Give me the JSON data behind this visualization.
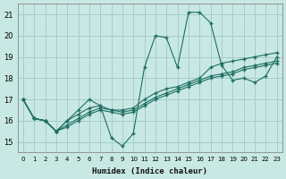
{
  "xlabel": "Humidex (Indice chaleur)",
  "xlim": [
    -0.5,
    23.5
  ],
  "ylim": [
    14.5,
    21.5
  ],
  "xticks": [
    0,
    1,
    2,
    3,
    4,
    5,
    6,
    7,
    8,
    9,
    10,
    11,
    12,
    13,
    14,
    15,
    16,
    17,
    18,
    19,
    20,
    21,
    22,
    23
  ],
  "yticks": [
    15,
    16,
    17,
    18,
    19,
    20,
    21
  ],
  "bg_color": "#c8e8e4",
  "grid_color": "#a8cccc",
  "line_color": "#1e6e62",
  "lines": [
    {
      "x": [
        0,
        1,
        2,
        3,
        4,
        5,
        6,
        7,
        8,
        9,
        10,
        11,
        12,
        13,
        14,
        15,
        16,
        17,
        18,
        19,
        20,
        21,
        22,
        23
      ],
      "y": [
        17.0,
        16.1,
        16.0,
        15.5,
        16.0,
        16.5,
        17.0,
        16.7,
        15.2,
        14.8,
        15.4,
        18.5,
        20.0,
        19.9,
        18.5,
        21.1,
        21.1,
        20.6,
        18.6,
        17.9,
        18.0,
        17.8,
        18.1,
        19.0
      ]
    },
    {
      "x": [
        0,
        1,
        2,
        3,
        4,
        5,
        6,
        7,
        8,
        9,
        10,
        11,
        12,
        13,
        14,
        15,
        16,
        17,
        18,
        19,
        20,
        21,
        22,
        23
      ],
      "y": [
        17.0,
        16.1,
        16.0,
        15.5,
        16.0,
        16.3,
        16.6,
        16.7,
        16.5,
        16.5,
        16.6,
        17.0,
        17.3,
        17.5,
        17.6,
        17.8,
        18.0,
        18.5,
        18.7,
        18.8,
        18.9,
        19.0,
        19.1,
        19.2
      ]
    },
    {
      "x": [
        0,
        1,
        2,
        3,
        4,
        5,
        6,
        7,
        8,
        9,
        10,
        11,
        12,
        13,
        14,
        15,
        16,
        17,
        18,
        19,
        20,
        21,
        22,
        23
      ],
      "y": [
        17.0,
        16.1,
        16.0,
        15.5,
        15.8,
        16.1,
        16.4,
        16.6,
        16.5,
        16.4,
        16.5,
        16.8,
        17.1,
        17.3,
        17.5,
        17.7,
        17.9,
        18.1,
        18.2,
        18.3,
        18.5,
        18.6,
        18.7,
        18.8
      ]
    },
    {
      "x": [
        0,
        1,
        2,
        3,
        4,
        5,
        6,
        7,
        8,
        9,
        10,
        11,
        12,
        13,
        14,
        15,
        16,
        17,
        18,
        19,
        20,
        21,
        22,
        23
      ],
      "y": [
        17.0,
        16.1,
        16.0,
        15.5,
        15.7,
        16.0,
        16.3,
        16.5,
        16.4,
        16.3,
        16.4,
        16.7,
        17.0,
        17.2,
        17.4,
        17.6,
        17.8,
        18.0,
        18.1,
        18.2,
        18.4,
        18.5,
        18.6,
        18.7
      ]
    }
  ]
}
